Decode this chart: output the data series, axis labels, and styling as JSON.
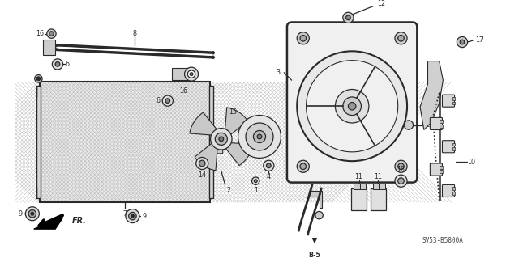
{
  "bg_color": "#ffffff",
  "diagram_code": "SV53-B5800A",
  "fig_width": 6.4,
  "fig_height": 3.19,
  "dpi": 100,
  "line_color": "#2a2a2a",
  "gray": "#888888"
}
